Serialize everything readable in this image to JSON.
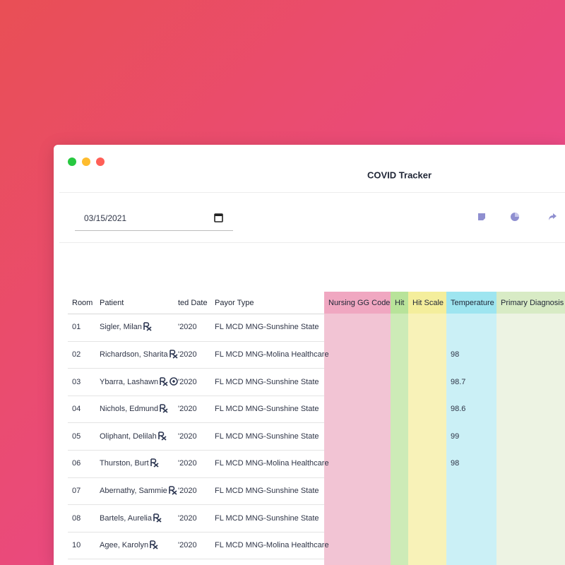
{
  "window": {
    "title": "COVID Tracker"
  },
  "toolbar": {
    "date": "03/15/2021"
  },
  "table": {
    "headers": [
      "Room",
      "Patient",
      "ted Date",
      "Payor Type",
      "Nursing GG Code",
      "Hit",
      "Hit Scale",
      "Temperature",
      "Primary Diagnosis"
    ],
    "rows": [
      {
        "room": "01",
        "patient": "Sigler, Milan",
        "date": "'2020",
        "payor": "FL MCD MNG-Sunshine State"
      },
      {
        "room": "02",
        "patient": "Richardson, Sharita",
        "date": "'2020",
        "payor": "FL MCD MNG-Molina Healthcare",
        "temperature": 98
      },
      {
        "room": "03",
        "patient": "Ybarra, Lashawn",
        "date": "'2020",
        "payor": "FL MCD MNG-Sunshine State",
        "temperature": 98.7
      },
      {
        "room": "04",
        "patient": "Nichols, Edmund",
        "date": "'2020",
        "payor": "FL MCD MNG-Sunshine State",
        "temperature": 98.6
      },
      {
        "room": "05",
        "patient": "Oliphant, Delilah",
        "date": "'2020",
        "payor": "FL MCD MNG-Sunshine State",
        "temperature": 99
      },
      {
        "room": "06",
        "patient": "Thurston, Burt",
        "date": "'2020",
        "payor": "FL MCD MNG-Molina Healthcare",
        "temperature": 98
      },
      {
        "room": "07",
        "patient": "Abernathy, Sammie",
        "date": "'2020",
        "payor": "FL MCD MNG-Sunshine State"
      },
      {
        "room": "08",
        "patient": "Bartels, Aurelia",
        "date": "'2020",
        "payor": "FL MCD MNG-Sunshine State"
      },
      {
        "room": "10",
        "patient": "Agee, Karolyn",
        "date": "'2020",
        "payor": "FL MCD MNG-Molina Healthcare"
      }
    ]
  }
}
